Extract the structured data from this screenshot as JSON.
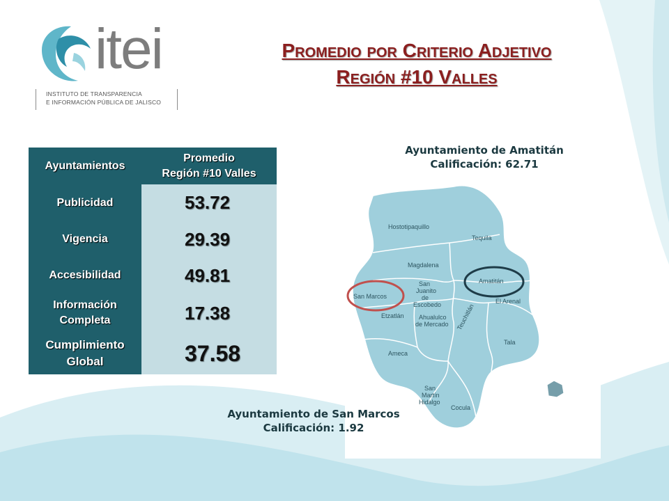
{
  "logo": {
    "wordmark": "itei",
    "line1": "INSTITUTO DE TRANSPARENCIA",
    "line2": "E INFORMACIÓN PÚBLICA DE JALISCO"
  },
  "title": {
    "line1": "Promedio por Criterio Adjetivo",
    "line2": "Región #10 Valles"
  },
  "table": {
    "header_col1": "Ayuntamientos",
    "header_col2_line1": "Promedio",
    "header_col2_line2": "Región #10 Valles",
    "rows": [
      {
        "label": "Publicidad",
        "value": "53.72"
      },
      {
        "label": "Vigencia",
        "value": "29.39"
      },
      {
        "label": "Accesibilidad",
        "value": "49.81"
      },
      {
        "label_line1": "Información",
        "label_line2": "Completa",
        "value": "17.38"
      },
      {
        "label_line1": "Cumplimiento",
        "label_line2": "Global",
        "value": "37.58"
      }
    ]
  },
  "callouts": {
    "amatitan_line1": "Ayuntamiento de Amatitán",
    "amatitan_line2": "Calificación: 62.71",
    "sanmarcos_line1": "Ayuntamiento de San Marcos",
    "sanmarcos_line2": "Calificación: 1.92"
  },
  "map": {
    "labels": {
      "hostotipaquillo": "Hostotipaquillo",
      "tequila": "Tequila",
      "magdalena": "Magdalena",
      "amatitan": "Amatitán",
      "san_juanito_1": "San",
      "san_juanito_2": "Juanito",
      "san_juanito_3": "de",
      "san_juanito_4": "Escobedo",
      "san_marcos": "San Marcos",
      "el_arenal": "El Arenal",
      "etzatlan": "Etzatlán",
      "ahualulco_1": "Ahualulco",
      "ahualulco_2": "de Mercado",
      "teuchitlan": "Teuchitlán",
      "tala": "Tala",
      "ameca": "Ameca",
      "san_martin_1": "San",
      "san_martin_2": "Martín",
      "san_martin_3": "Hidalgo",
      "cocula": "Cocula"
    },
    "colors": {
      "region_fill": "#9fcfdc",
      "border": "#ffffff",
      "amatitan_circle": "#1e3c48",
      "sanmarcos_circle": "#c0504d"
    }
  },
  "colors": {
    "title": "#8b1f1f",
    "table_header": "#1f5f6b",
    "table_value_bg": "#c5dde3"
  }
}
